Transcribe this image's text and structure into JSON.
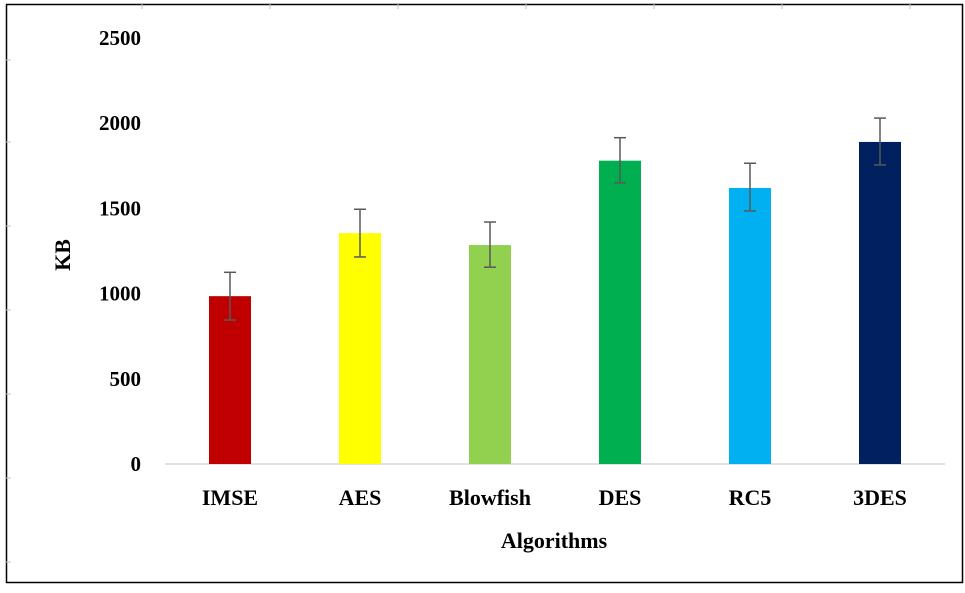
{
  "chart_data": {
    "type": "bar",
    "title": "",
    "xlabel": "Algorithms",
    "ylabel": "KB",
    "ylim": [
      0,
      2500
    ],
    "yticks": [
      0,
      500,
      1000,
      1500,
      2000,
      2500
    ],
    "grid": false,
    "legend": "none",
    "categories": [
      "IMSE",
      "AES",
      "Blowfish",
      "DES",
      "RC5",
      "3DES"
    ],
    "series": [
      {
        "values": [
          985,
          1355,
          1285,
          1780,
          1620,
          1890
        ],
        "error_low": [
          845,
          1215,
          1155,
          1650,
          1485,
          1755
        ],
        "error_high": [
          1125,
          1495,
          1420,
          1915,
          1765,
          2030
        ]
      }
    ],
    "colors": [
      "#C00000",
      "#FFFF00",
      "#92D050",
      "#00B050",
      "#00B0F0",
      "#002060"
    ],
    "error_bar_color": "#595959"
  }
}
